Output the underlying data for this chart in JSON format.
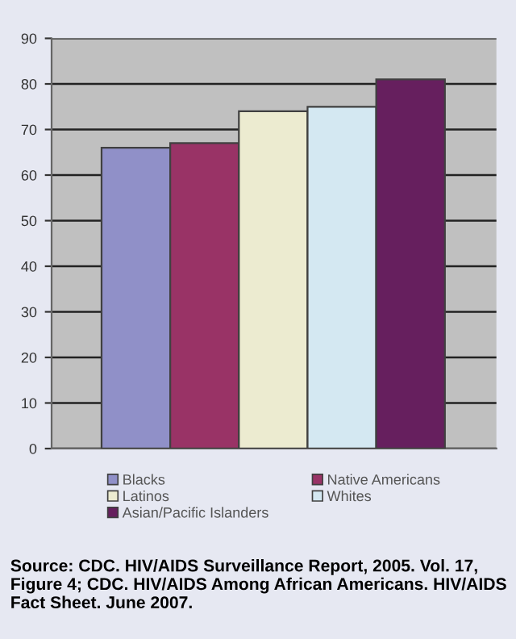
{
  "chart_data": {
    "type": "bar",
    "categories": [
      null
    ],
    "series": [
      {
        "name": "Blacks",
        "color": "#9090c8",
        "values": [
          66
        ]
      },
      {
        "name": "Native Americans",
        "color": "#993366",
        "values": [
          67
        ]
      },
      {
        "name": "Latinos",
        "color": "#ecebd0",
        "values": [
          74
        ]
      },
      {
        "name": "Whites",
        "color": "#d4e8f2",
        "values": [
          75
        ]
      },
      {
        "name": "Asian/Pacific Islanders",
        "color": "#661f5e",
        "values": [
          81
        ]
      }
    ],
    "ylim": [
      0,
      90
    ],
    "yticks": [
      0,
      10,
      20,
      30,
      40,
      50,
      60,
      70,
      80,
      90
    ],
    "grid": "y",
    "legend": "bottom",
    "tick_labels": "y",
    "annotations": [
      "Source: CDC. HIV/AIDS Surveillance Report, 2005. Vol. 17, Figure 4; CDC. HIV/AIDS Among African Americans. HIV/AIDS Fact Sheet. June 2007."
    ]
  }
}
